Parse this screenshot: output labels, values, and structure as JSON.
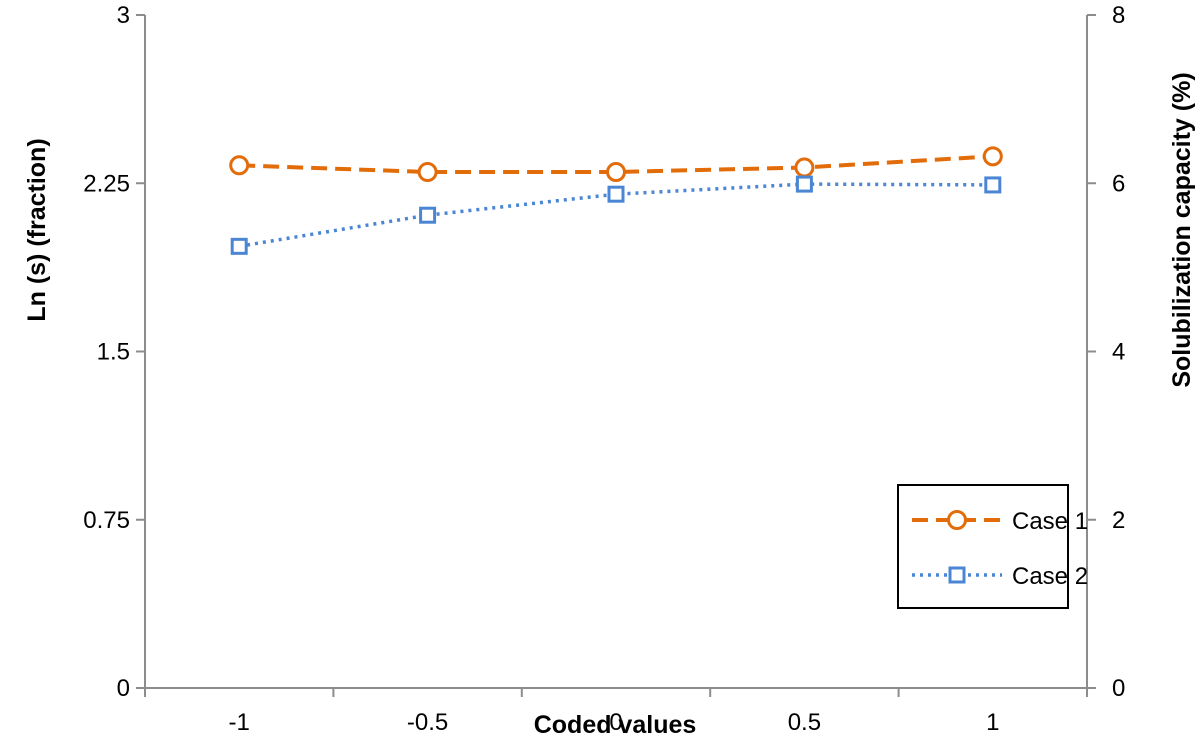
{
  "chart_data": {
    "type": "line",
    "title": "",
    "xlabel": "Coded values",
    "ylabel": "Ln (s) (fraction)",
    "y2label": "Solubilization capacity (%)",
    "xlim": [
      -1.25,
      1.25
    ],
    "ylim": [
      0,
      3
    ],
    "y2lim": [
      0,
      8
    ],
    "x": [
      -1,
      -0.5,
      0,
      0.5,
      1
    ],
    "x_tick_labels": [
      "-1",
      "-0.5",
      "0",
      "0.5",
      "1"
    ],
    "y_ticks": [
      0,
      0.75,
      1.5,
      2.25,
      3
    ],
    "y_tick_labels": [
      "0",
      "0.75",
      "1.5",
      "2.25",
      "3"
    ],
    "y2_ticks": [
      0,
      2,
      4,
      6,
      8
    ],
    "y2_tick_labels": [
      "0",
      "2",
      "4",
      "6",
      "8"
    ],
    "grid": false,
    "legend_position": "bottom-right",
    "series": [
      {
        "name": "Case 1",
        "axis": "left",
        "values": [
          2.33,
          2.3,
          2.3,
          2.32,
          2.37
        ],
        "color": "#E36C0A",
        "line_style": "dashed",
        "marker": "circle"
      },
      {
        "name": "Case 2",
        "axis": "right",
        "values": [
          5.25,
          5.62,
          5.87,
          5.99,
          5.98
        ],
        "color": "#4A86D4",
        "line_style": "dotted",
        "marker": "square"
      }
    ]
  }
}
